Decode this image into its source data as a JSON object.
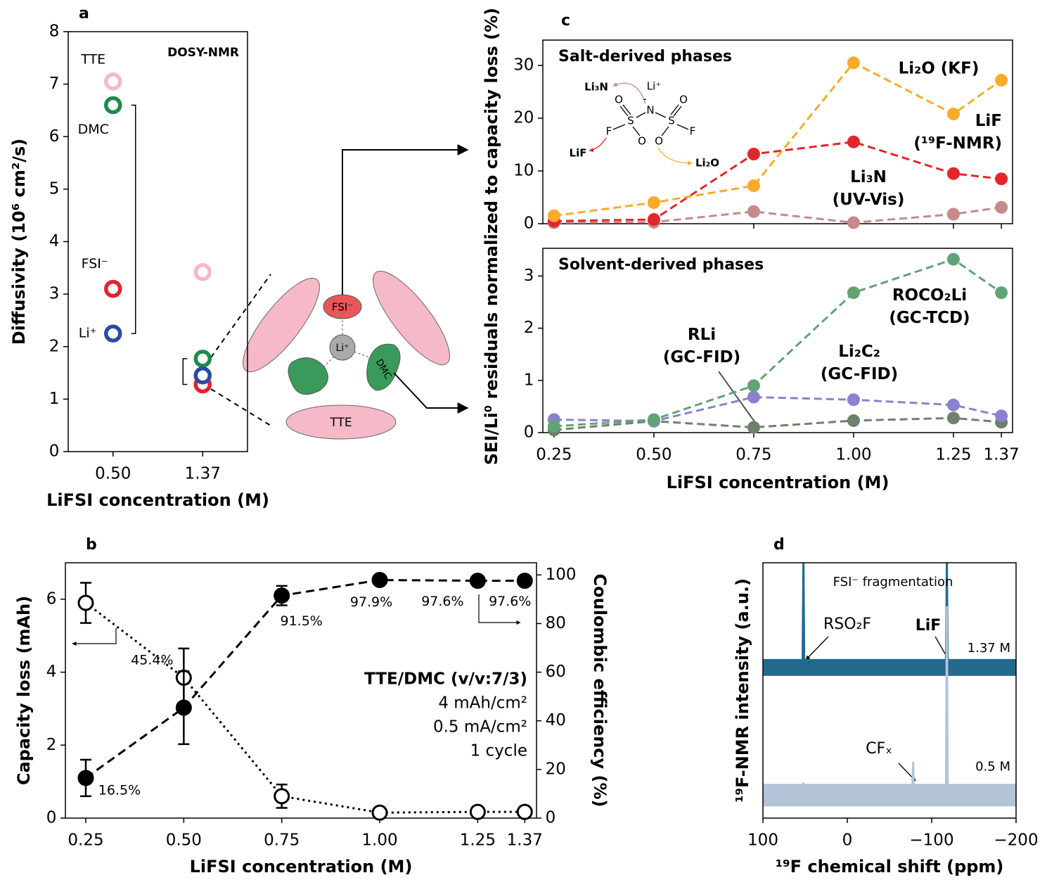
{
  "chart_data": [
    {
      "type": "scatter",
      "panel": "a",
      "title": "DOSY-NMR",
      "categories": [
        "0.50",
        "1.37"
      ],
      "xlabel": "LiFSI concentration (M)",
      "ylabel": "Diffusivity (10⁶ cm²/s)",
      "ylim": [
        0,
        8
      ],
      "yticks": [
        0,
        1,
        2,
        3,
        4,
        5,
        6,
        7,
        8
      ],
      "series": [
        {
          "name": "TTE",
          "color": "#f5b9c8",
          "values": [
            7.05,
            3.42
          ]
        },
        {
          "name": "DMC",
          "color": "#1f8a4c",
          "values": [
            6.6,
            1.77
          ]
        },
        {
          "name": "FSI⁻",
          "color": "#e8202a",
          "values": [
            3.1,
            1.28
          ]
        },
        {
          "name": "Li⁺",
          "color": "#2b4aa6",
          "values": [
            2.25,
            1.45
          ]
        }
      ]
    },
    {
      "type": "line",
      "panel": "c",
      "title": "Salt-derived phases",
      "ylabel": "SEI/Li⁰ residuals normalized to capacity loss (%)",
      "x": [
        0.25,
        0.5,
        0.75,
        1.0,
        1.25,
        1.37
      ],
      "xlim": [
        0.222,
        1.398
      ],
      "xticks": [
        0.25,
        0.5,
        0.75,
        1,
        1.25,
        1.37
      ],
      "ylim": [
        0,
        34.8
      ],
      "yticks": [
        0,
        10,
        20,
        30
      ],
      "series": [
        {
          "name": "Li₂O (KF)",
          "color": "#f8ab2a",
          "values": [
            1.5,
            4,
            7.2,
            30.5,
            20.8,
            27.2
          ]
        },
        {
          "name": "LiF\n(¹⁹F-NMR)",
          "color": "#e3262b",
          "values": [
            0.5,
            0.8,
            13.2,
            15.5,
            9.5,
            8.5
          ]
        },
        {
          "name": "Li₃N\n(UV-Vis)",
          "color": "#c68a88",
          "values": [
            0.2,
            0.3,
            2.3,
            0.2,
            1.8,
            3.1
          ]
        }
      ]
    },
    {
      "type": "line",
      "title": "Solvent-derived phases",
      "xlabel": "LiFSI concentration (M)",
      "x": [
        0.25,
        0.5,
        0.75,
        1.0,
        1.25,
        1.37
      ],
      "xlim": [
        0.222,
        1.398
      ],
      "xticks": [
        0.25,
        {
          "value": 0.5,
          "label": "0.50"
        },
        0.75,
        {
          "value": 1,
          "label": "1.00"
        },
        1.25,
        1.37
      ],
      "ylim": [
        0,
        3.53
      ],
      "yticks": [
        0,
        1,
        2,
        3
      ],
      "series": [
        {
          "name": "ROCO₂Li\n(GC-TCD)",
          "color": "#62a375",
          "values": [
            0.12,
            0.25,
            0.9,
            2.68,
            3.32,
            2.68
          ]
        },
        {
          "name": "Li₂C₂\n(GC-FID)",
          "color": "#8b80d2",
          "values": [
            0.25,
            0.22,
            0.68,
            0.63,
            0.53,
            0.32
          ]
        },
        {
          "name": "RLi\n(GC-FID)",
          "color": "#6e816c",
          "values": [
            0.05,
            0.22,
            0.1,
            0.23,
            0.28,
            0.2
          ]
        }
      ]
    },
    {
      "type": "dual",
      "panel": "b",
      "xlabel": "LiFSI concentration (M)",
      "ylabel": "Capacity loss (mAh)",
      "y2label": "Coulombic efficiency (%)",
      "x": [
        0.25,
        0.5,
        0.75,
        1.0,
        1.25,
        1.37
      ],
      "xlim": [
        0.198,
        1.4
      ],
      "xticks": [
        0.25,
        {
          "value": 0.5,
          "label": "0.50"
        },
        0.75,
        {
          "value": 1,
          "label": "1.00"
        },
        1.25,
        1.37
      ],
      "ylim": [
        0,
        7
      ],
      "yticks": [
        0,
        2,
        4,
        6
      ],
      "y2lim": [
        0,
        105
      ],
      "y2ticks": [
        0,
        20,
        40,
        60,
        80,
        100
      ],
      "series": [
        {
          "color": "#000000",
          "style": "dotted",
          "marker": "open",
          "values": [
            5.9,
            3.85,
            0.6,
            0.15,
            0.17,
            0.17
          ],
          "errors": [
            0.55,
            0.8,
            0.32,
            null,
            null,
            null
          ]
        },
        {
          "color": "#000000",
          "style": "dashed",
          "marker": "filled",
          "axis": "y2",
          "values": [
            16.5,
            45.4,
            91.5,
            97.9,
            97.6,
            97.6
          ],
          "value_labels": [
            "16.5%",
            "45.4%",
            "91.5%",
            "97.9%",
            "97.6%",
            "97.6%"
          ],
          "errors": [
            7.5,
            15,
            4,
            null,
            null,
            null
          ]
        }
      ],
      "annotations": [
        "TTE/DMC (v/v:7/3)",
        "4 mAh/cm²",
        "0.5 mA/cm²",
        "1 cycle"
      ]
    },
    {
      "type": "spectrum",
      "panel": "d",
      "title": "FSI⁻ fragmentation",
      "xlabel": "¹⁹F chemical shift (ppm)",
      "ylabel": "¹⁹F-NMR intensity (a.u.)",
      "xlim": [
        100,
        -200
      ],
      "xticks": [
        100,
        0,
        {
          "value": -100,
          "label": "−100"
        },
        {
          "value": -200,
          "label": "−200"
        }
      ],
      "ylim": [
        0,
        1
      ],
      "series": [
        {
          "name": "1.37 M",
          "color": "#23698e",
          "x": [
            100,
            53,
            52,
            51,
            -117,
            -118,
            -119,
            -200
          ],
          "values": [
            0.59,
            0.59,
            1,
            0.59,
            0.59,
            1,
            0.59,
            0.59
          ]
        },
        {
          "name": "0.5 M",
          "color": "#b3c4d8",
          "x": [
            100,
            53,
            52,
            51,
            -77,
            -78,
            -79,
            -117,
            -118,
            -119,
            -200
          ],
          "values": [
            0.09,
            0.09,
            0.14,
            0.09,
            0.09,
            0.22,
            0.09,
            0.09,
            0.83,
            0.09,
            0.09
          ]
        }
      ],
      "annotations": [
        "RSO₂F",
        "LiF",
        "CFₓ"
      ]
    }
  ],
  "diagram": {
    "labels": [
      "FSI⁻",
      "Li⁺",
      "DMC",
      "TTE"
    ]
  },
  "structure": {
    "labels": [
      "Li₃N",
      "Li⁺",
      "O",
      "O",
      "-",
      "N",
      "S",
      "S",
      "O",
      "O",
      "F",
      "F",
      "LiF",
      "Li₂O"
    ]
  }
}
